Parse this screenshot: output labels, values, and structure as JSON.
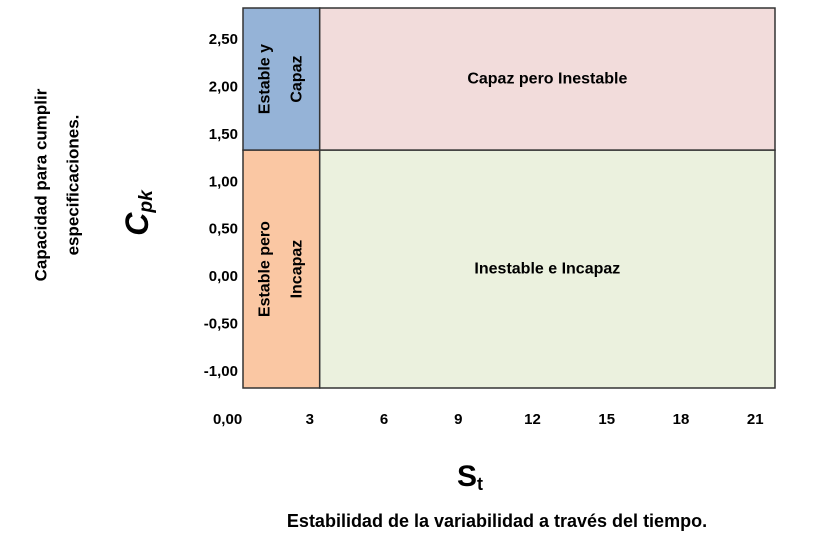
{
  "chart_data": {
    "type": "quadrant",
    "xlim": [
      0.3,
      21.8
    ],
    "ylim": [
      -1.17,
      2.84
    ],
    "xticks": [
      {
        "value": 0,
        "label": "0,00"
      },
      3,
      6,
      9,
      12,
      15,
      18,
      21
    ],
    "yticks": [
      {
        "value": -1,
        "label": "-1,00"
      },
      {
        "value": -0.5,
        "label": "-0,50"
      },
      {
        "value": 0,
        "label": "0,00"
      },
      {
        "value": 0.5,
        "label": "0,50"
      },
      {
        "value": 1,
        "label": "1,00"
      },
      {
        "value": 1.5,
        "label": "1,50"
      },
      {
        "value": 2,
        "label": "2,00"
      },
      {
        "value": 2.5,
        "label": "2,50"
      }
    ],
    "y_symbol": {
      "main": "C",
      "sub": "pk"
    },
    "y_label": [
      "Capacidad para cumplir",
      "especificaciones."
    ],
    "x_symbol": {
      "main": "S",
      "sub": "t"
    },
    "x_label": "Estabilidad de la variabilidad a través del tiempo.",
    "regions": [
      {
        "label": [
          "Estable y",
          "Capaz"
        ],
        "x": [
          0.3,
          3.4
        ],
        "y": [
          1.34,
          2.84
        ],
        "color": "#95b3d7",
        "orientation": "vertical"
      },
      {
        "label": [
          "Capaz pero Inestable"
        ],
        "x": [
          3.4,
          21.8
        ],
        "y": [
          1.34,
          2.84
        ],
        "color": "#f2dcdb",
        "orientation": "horizontal"
      },
      {
        "label": [
          "Estable pero",
          "Incapaz"
        ],
        "x": [
          0.3,
          3.4
        ],
        "y": [
          -1.17,
          1.34
        ],
        "color": "#fac7a3",
        "orientation": "vertical"
      },
      {
        "label": [
          "Inestable e Incapaz"
        ],
        "x": [
          3.4,
          21.8
        ],
        "y": [
          -1.17,
          1.34
        ],
        "color": "#ebf1de",
        "orientation": "horizontal"
      }
    ]
  }
}
